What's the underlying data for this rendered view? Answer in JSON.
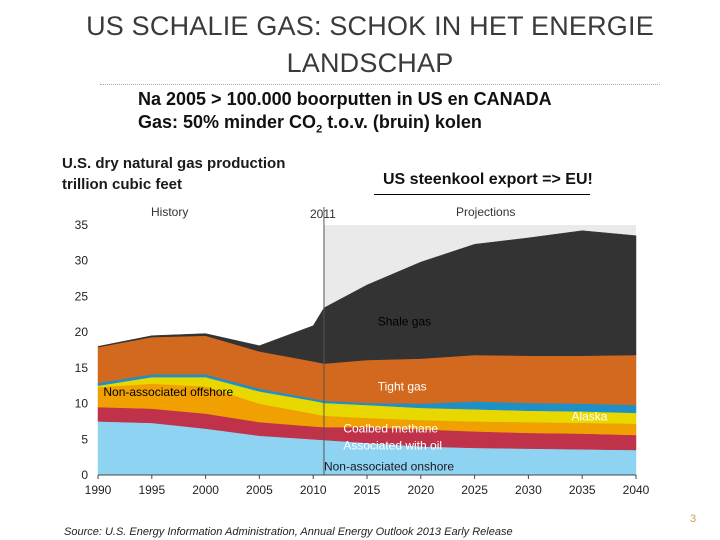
{
  "slide": {
    "title": "US SCHALIE GAS: SCHOK IN HET ENERGIE LANDSCHAP",
    "bullet_line1": "Na 2005 > 100.000 boorputten in US en CANADA",
    "bullet_line2_pre": "Gas:  50% minder CO",
    "bullet_line2_sub": "2",
    "bullet_line2_post": " t.o.v. (bruin) kolen",
    "callout": "US steenkool export => EU!",
    "page_number": "3"
  },
  "colors": {
    "shale": "#333333",
    "tight": "#d2691e",
    "alaska": "#1e90c8",
    "coalbed": "#e8d800",
    "offshore": "#f0a000",
    "associated": "#c0314a",
    "onshore": "#8fd3f3",
    "projection_bg": "#eaeaea"
  },
  "chart_data": {
    "type": "area",
    "title": "U.S. dry natural gas production",
    "subtitle": "trillion cubic feet",
    "history_label": "History",
    "projections_label": "Projections",
    "divider_label": "2011",
    "divider_year": 2011,
    "xlim": [
      1990,
      2040
    ],
    "ylim": [
      0,
      35
    ],
    "x_ticks": [
      "1990",
      "1995",
      "2000",
      "2005",
      "2010",
      "2015",
      "2020",
      "2025",
      "2030",
      "2035",
      "2040"
    ],
    "y_ticks": [
      "0",
      "5",
      "10",
      "15",
      "20",
      "25",
      "30",
      "35"
    ],
    "x": [
      1990,
      1995,
      2000,
      2005,
      2010,
      2011,
      2015,
      2020,
      2025,
      2030,
      2035,
      2040
    ],
    "series": [
      {
        "name": "Non-associated onshore",
        "key": "onshore",
        "values": [
          7.5,
          7.3,
          6.5,
          5.5,
          5.0,
          4.9,
          4.5,
          4.0,
          3.8,
          3.7,
          3.6,
          3.5
        ]
      },
      {
        "name": "Associated with oil",
        "key": "associated",
        "values": [
          2.0,
          2.0,
          2.1,
          1.9,
          1.8,
          1.8,
          2.2,
          2.4,
          2.3,
          2.2,
          2.2,
          2.1
        ]
      },
      {
        "name": "Non-associated offshore",
        "key": "offshore",
        "values": [
          2.8,
          3.5,
          3.8,
          2.6,
          1.8,
          1.6,
          1.3,
          1.3,
          1.4,
          1.5,
          1.5,
          1.6
        ]
      },
      {
        "name": "Coalbed methane",
        "key": "coalbed",
        "values": [
          0.2,
          0.9,
          1.3,
          1.7,
          1.8,
          1.8,
          1.8,
          1.7,
          1.7,
          1.6,
          1.6,
          1.5
        ]
      },
      {
        "name": "Alaska",
        "key": "alaska",
        "values": [
          0.4,
          0.4,
          0.4,
          0.4,
          0.3,
          0.3,
          0.3,
          0.6,
          1.1,
          1.1,
          1.1,
          1.1
        ]
      },
      {
        "name": "Tight gas",
        "key": "tight",
        "values": [
          5.0,
          5.2,
          5.4,
          5.2,
          5.2,
          5.2,
          6.0,
          6.3,
          6.5,
          6.6,
          6.7,
          7.0
        ]
      },
      {
        "name": "Shale gas",
        "key": "shale",
        "values": [
          0.1,
          0.2,
          0.3,
          0.8,
          5.0,
          7.8,
          10.5,
          13.5,
          15.5,
          16.5,
          17.5,
          16.7
        ]
      }
    ],
    "legend": [
      {
        "label": "Shale gas",
        "key": "shale",
        "year": 2016,
        "value": 21.5,
        "color": "#000000"
      },
      {
        "label": "Tight gas",
        "key": "tight",
        "year": 2016,
        "value": 12.4,
        "color": "#ffffff"
      },
      {
        "label": "Alaska",
        "key": "alaska",
        "year": 2034,
        "value": 8.2,
        "color": "#ffffff"
      },
      {
        "label": "Non-associated offshore",
        "key": "offshore",
        "year": 1990.5,
        "value": 11.6,
        "color": "#000000"
      },
      {
        "label": "Coalbed methane",
        "key": "coalbed",
        "year": 2012.8,
        "value": 6.5,
        "color": "#ffffff"
      },
      {
        "label": "Associated with oil",
        "key": "associated",
        "year": 2012.8,
        "value": 4.1,
        "color": "#ffffff"
      },
      {
        "label": "Non-associated onshore",
        "key": "onshore",
        "year": 2011.0,
        "value": 1.2,
        "color": "#1a1a1a"
      }
    ],
    "source": "Source:  U.S. Energy Information Administration, Annual Energy Outlook 2013 Early Release"
  }
}
